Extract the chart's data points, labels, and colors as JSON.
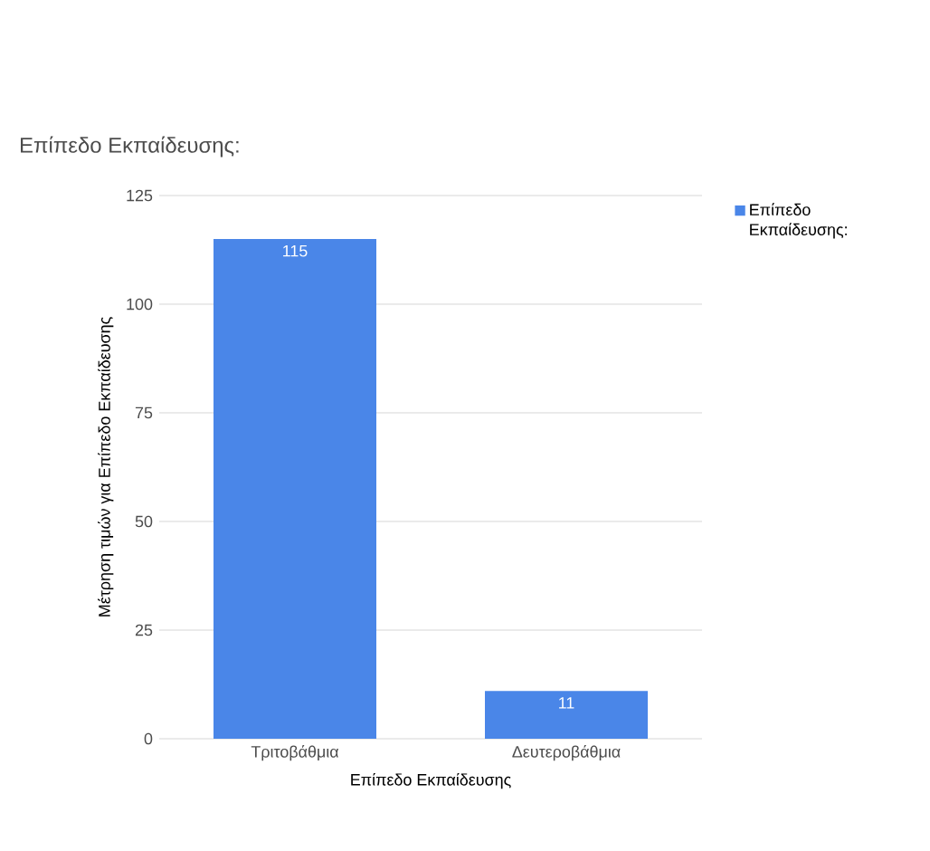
{
  "chart_data": {
    "type": "bar",
    "title": "Επίπεδο Εκπαίδευσης:",
    "xlabel": "Επίπεδο Εκπαίδευσης",
    "ylabel": "Μέτρηση τιμών για Επίπεδο Εκπαίδευσης",
    "categories": [
      "Τριτοβάθμια",
      "Δευτεροβάθμια"
    ],
    "series": [
      {
        "name": "Επίπεδο Εκπαίδευσης:",
        "color": "#4a86e8",
        "values": [
          115,
          11
        ]
      }
    ],
    "ylim": [
      0,
      125
    ],
    "yticks": [
      0,
      25,
      50,
      75,
      100,
      125
    ],
    "grid": "y",
    "legend": "top right",
    "data_labels": true
  }
}
